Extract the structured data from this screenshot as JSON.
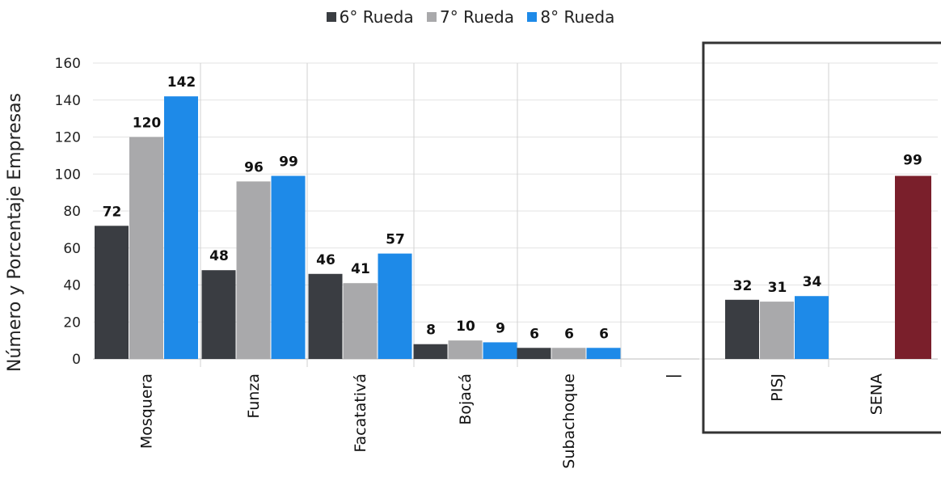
{
  "chart_data": {
    "type": "bar",
    "categories": [
      "Mosquera",
      "Funza",
      "Facatativá",
      "Bojacá",
      "Subachoque",
      "PISJ"
    ],
    "series": [
      {
        "name": "6° Rueda",
        "values": [
          72,
          48,
          46,
          8,
          6,
          32
        ],
        "color": "#3a3d42"
      },
      {
        "name": "7° Rueda",
        "values": [
          120,
          96,
          41,
          10,
          6,
          31
        ],
        "color": "#a9a9ab"
      },
      {
        "name": "8° Rueda",
        "values": [
          142,
          99,
          57,
          9,
          6,
          34
        ],
        "color": "#1e8ae8"
      }
    ],
    "extra_bar": {
      "category": "SENA",
      "value": 99,
      "color": "#7a1f2b"
    },
    "separator_label": "|",
    "title": "",
    "xlabel": "",
    "ylabel": "Número y Porcentaje  Empresas",
    "ylim": [
      0,
      160
    ],
    "yticks": [
      0,
      20,
      40,
      60,
      80,
      100,
      120,
      140,
      160
    ],
    "legend_position": "top-center",
    "grid": true
  }
}
